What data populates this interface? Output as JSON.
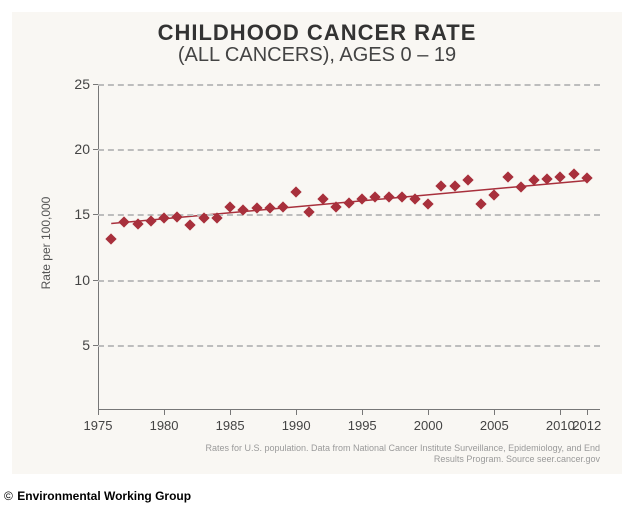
{
  "chart": {
    "type": "scatter",
    "title_main": "CHILDHOOD CANCER RATE",
    "title_sub": "(ALL CANCERS), AGES 0 – 19",
    "title_main_fontsize": 22,
    "title_sub_fontsize": 20,
    "title_color": "#333333",
    "background_color": "#f9f7f3",
    "plot_background": "#f9f7f3",
    "grid_color": "#bdbdbd",
    "grid_style": "dashed",
    "axis_color": "#777777",
    "tick_label_color": "#444444",
    "y_label": "Rate per 100,000",
    "y_label_fontsize": 12,
    "xlim": [
      1975,
      2013
    ],
    "ylim": [
      0,
      25
    ],
    "y_ticks": [
      5,
      10,
      15,
      20,
      25
    ],
    "x_ticks": [
      1975,
      1980,
      1985,
      1990,
      1995,
      2000,
      2005,
      2010,
      2012
    ],
    "marker_style": "diamond",
    "marker_size": 8,
    "marker_color": "#a8303c",
    "line_color": "#a8303c",
    "line_width": 1.5,
    "years": [
      1976,
      1977,
      1978,
      1979,
      1980,
      1981,
      1982,
      1983,
      1984,
      1985,
      1986,
      1987,
      1988,
      1989,
      1990,
      1991,
      1992,
      1993,
      1994,
      1995,
      1996,
      1997,
      1998,
      1999,
      2000,
      2001,
      2002,
      2003,
      2004,
      2005,
      2006,
      2007,
      2008,
      2009,
      2010,
      2011,
      2012
    ],
    "rates": [
      13.1,
      14.4,
      14.3,
      14.5,
      14.7,
      14.8,
      14.2,
      14.7,
      14.7,
      15.6,
      15.3,
      15.5,
      15.5,
      15.6,
      16.7,
      15.2,
      16.2,
      15.6,
      15.9,
      16.2,
      16.3,
      16.3,
      16.3,
      16.2,
      15.8,
      17.2,
      17.2,
      17.6,
      15.8,
      16.5,
      17.9,
      17.1,
      17.6,
      17.7,
      17.9,
      18.1,
      17.8
    ],
    "trend": {
      "x": [
        1976,
        2012
      ],
      "y": [
        14.3,
        17.6
      ]
    },
    "source_text": "Rates for U.S. population. Data from National Cancer Institute Surveillance, Epidemiology, and End Results Program. Source seer.cancer.gov",
    "source_color": "#9a9a9a",
    "source_fontsize": 9
  },
  "attribution": {
    "copyright": "©",
    "org": "Environmental Working Group"
  }
}
